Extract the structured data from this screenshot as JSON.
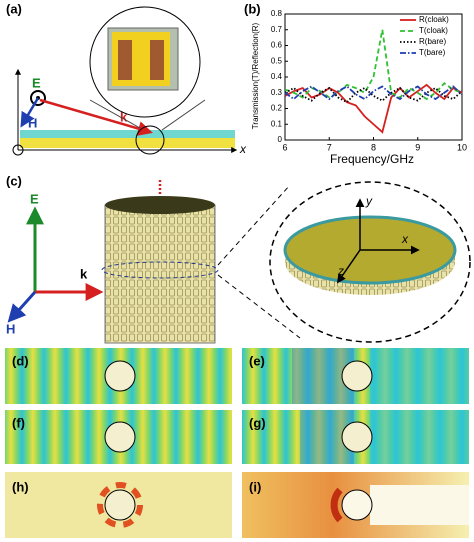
{
  "labels": {
    "a": "(a)",
    "b": "(b)",
    "c": "(c)",
    "d": "(d)",
    "e": "(e)",
    "f": "(f)",
    "g": "(g)",
    "h": "(h)",
    "i": "(i)"
  },
  "panel_a": {
    "E": "E",
    "H": "H",
    "k": "k",
    "x": "x"
  },
  "panel_c": {
    "E": "E",
    "k": "k",
    "H": "H",
    "x": "x",
    "y": "y",
    "z": "z"
  },
  "chart_data": {
    "type": "line",
    "xlabel": "Frequency/GHz",
    "ylabel": "Transmission(T)/Reflection(R)",
    "x": [
      6,
      6.2,
      6.4,
      6.6,
      6.8,
      7,
      7.2,
      7.4,
      7.6,
      7.8,
      8,
      8.2,
      8.4,
      8.6,
      8.8,
      9,
      9.2,
      9.4,
      9.6,
      9.8,
      10
    ],
    "series": [
      {
        "name": "R(cloak)",
        "color": "#d62020",
        "style": "solid",
        "values": [
          0.28,
          0.31,
          0.33,
          0.27,
          0.29,
          0.33,
          0.3,
          0.24,
          0.22,
          0.15,
          0.1,
          0.05,
          0.27,
          0.33,
          0.27,
          0.31,
          0.35,
          0.3,
          0.26,
          0.33,
          0.3
        ]
      },
      {
        "name": "T(cloak)",
        "color": "#30c030",
        "style": "dashed",
        "values": [
          0.32,
          0.3,
          0.27,
          0.33,
          0.31,
          0.27,
          0.3,
          0.35,
          0.33,
          0.3,
          0.4,
          0.7,
          0.3,
          0.27,
          0.33,
          0.3,
          0.26,
          0.3,
          0.36,
          0.32,
          0.3
        ]
      },
      {
        "name": "R(bare)",
        "color": "#000000",
        "style": "dotted",
        "values": [
          0.3,
          0.33,
          0.28,
          0.25,
          0.3,
          0.33,
          0.27,
          0.24,
          0.3,
          0.33,
          0.28,
          0.25,
          0.3,
          0.33,
          0.27,
          0.25,
          0.3,
          0.33,
          0.28,
          0.26,
          0.31
        ]
      },
      {
        "name": "T(bare)",
        "color": "#1f3fb0",
        "style": "dashdot",
        "values": [
          0.3,
          0.26,
          0.31,
          0.34,
          0.3,
          0.26,
          0.31,
          0.34,
          0.29,
          0.26,
          0.31,
          0.34,
          0.29,
          0.26,
          0.31,
          0.34,
          0.29,
          0.26,
          0.3,
          0.34,
          0.29
        ]
      }
    ],
    "xlim": [
      6,
      10
    ],
    "ylim": [
      0,
      0.8
    ],
    "xticks": [
      6,
      7,
      8,
      9,
      10
    ],
    "yticks": [
      0,
      0.1,
      0.2,
      0.3,
      0.4,
      0.5,
      0.6,
      0.7,
      0.8
    ],
    "legend": "upper-right",
    "grid": false
  }
}
